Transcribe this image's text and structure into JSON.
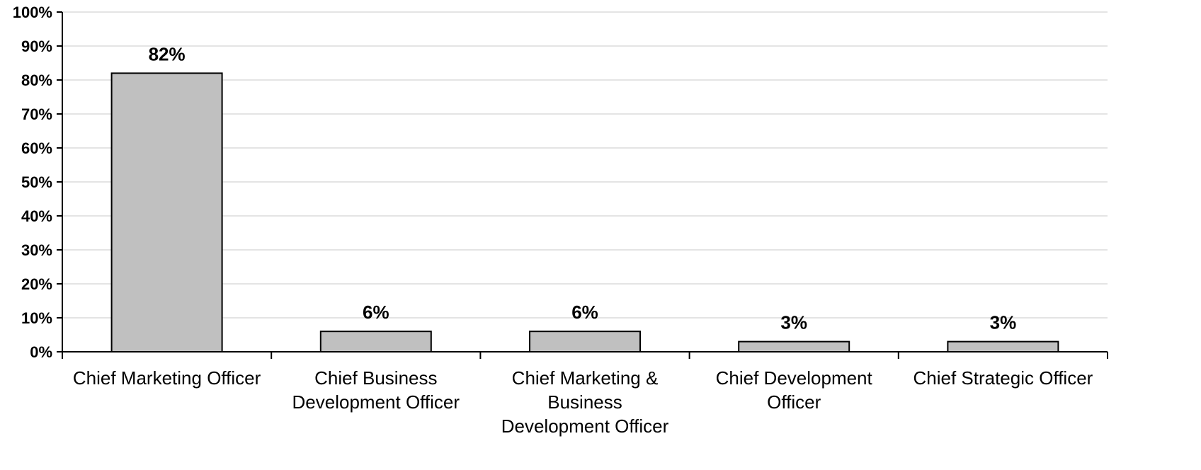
{
  "chart_data": {
    "type": "bar",
    "categories": [
      [
        "Chief Marketing Officer"
      ],
      [
        "Chief Business",
        "Development Officer"
      ],
      [
        "Chief Marketing &",
        "Business",
        "Development Officer"
      ],
      [
        "Chief Development",
        "Officer"
      ],
      [
        "Chief Strategic Officer"
      ]
    ],
    "values": [
      82,
      6,
      6,
      3,
      3
    ],
    "data_labels": [
      "82%",
      "6%",
      "6%",
      "3%",
      "3%"
    ],
    "y_ticks": [
      "0%",
      "10%",
      "20%",
      "30%",
      "40%",
      "50%",
      "60%",
      "70%",
      "80%",
      "90%",
      "100%"
    ],
    "ylim": [
      0,
      100
    ],
    "grid": true,
    "colors": {
      "bar_fill": "#c0c0c0",
      "bar_stroke": "#000000",
      "grid": "#c8c8c8",
      "axis": "#000000"
    }
  }
}
